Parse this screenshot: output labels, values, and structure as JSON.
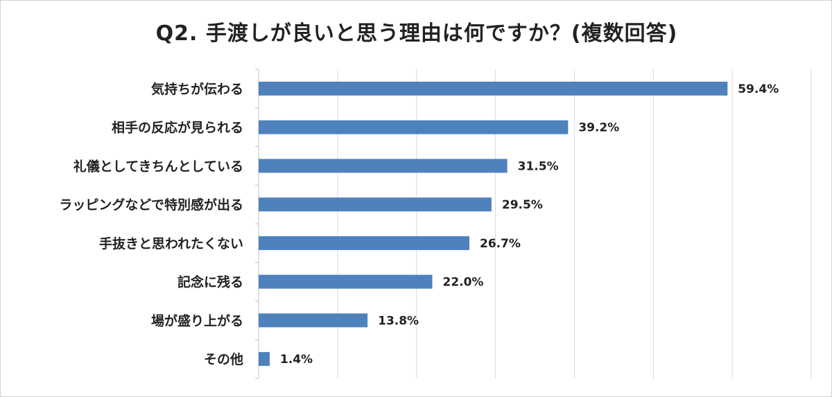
{
  "title": "Q2. 手渡しが良いと思う理由は何ですか？(複数回答)",
  "colors": {
    "bar": "#4f81bd",
    "grid": "#d9d9d9",
    "text": "#222222"
  },
  "chart_data": {
    "type": "bar",
    "orientation": "horizontal",
    "title": "Q2. 手渡しが良いと思う理由は何ですか？(複数回答)",
    "categories": [
      "気持ちが伝わる",
      "相手の反応が見られる",
      "礼儀としてきちんとしている",
      "ラッピングなどで特別感が出る",
      "手抜きと思われたくない",
      "記念に残る",
      "場が盛り上がる",
      "その他"
    ],
    "values": [
      59.4,
      39.2,
      31.5,
      29.5,
      26.7,
      22.0,
      13.8,
      1.4
    ],
    "value_labels": [
      "59.4%",
      "39.2%",
      "31.5%",
      "29.5%",
      "26.7%",
      "22.0%",
      "13.8%",
      "1.4%"
    ],
    "xlim": [
      0,
      70
    ],
    "grid": true,
    "legend": "none"
  }
}
